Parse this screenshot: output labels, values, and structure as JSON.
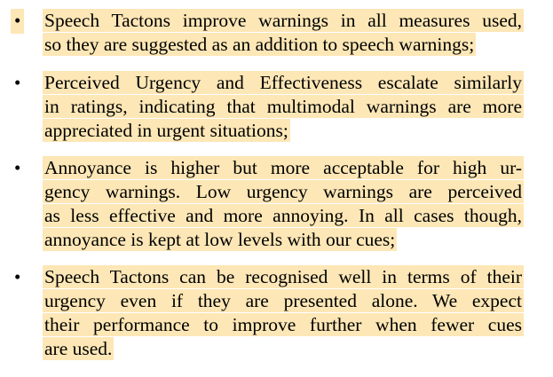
{
  "highlight_color": "#fde7b6",
  "bullet_glyph": "•",
  "items": [
    {
      "lines": [
        "Speech Tactons improve warnings in all measures used,",
        "so they are suggested as an addition to speech warnings;"
      ]
    },
    {
      "lines": [
        "Perceived Urgency and Effectiveness escalate similarly",
        "in ratings, indicating that multimodal warnings are more",
        "appreciated in urgent situations;"
      ]
    },
    {
      "lines": [
        "Annoyance is higher but more acceptable for high ur-",
        "gency warnings. Low urgency warnings are perceived",
        "as less effective and more annoying. In all cases though,",
        "annoyance is kept at low levels with our cues;"
      ]
    },
    {
      "lines": [
        "Speech Tactons can be recognised well in terms of their",
        "urgency even if they are presented alone. We expect",
        "their performance to improve further when fewer cues",
        "are used."
      ]
    }
  ]
}
